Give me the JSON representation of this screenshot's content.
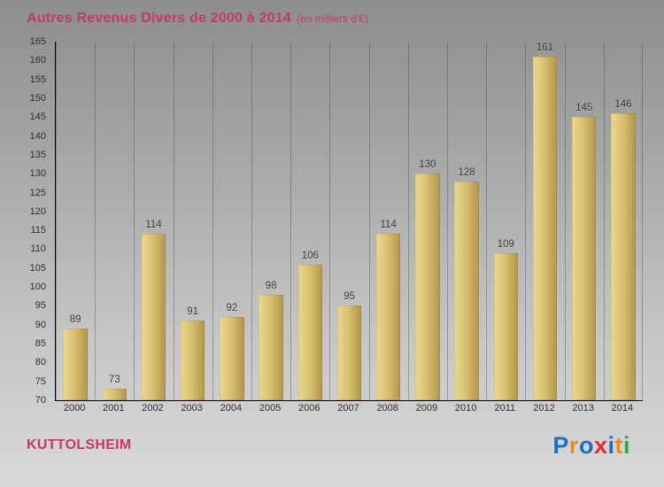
{
  "header": {
    "title": "Autres Revenus Divers de 2000 à 2014",
    "subtitle": "(en milliers d'€)"
  },
  "chart_data": {
    "type": "bar",
    "categories": [
      "2000",
      "2001",
      "2002",
      "2003",
      "2004",
      "2005",
      "2006",
      "2007",
      "2008",
      "2009",
      "2010",
      "2011",
      "2012",
      "2013",
      "2014"
    ],
    "values": [
      89,
      73,
      114,
      91,
      92,
      98,
      106,
      95,
      114,
      130,
      128,
      109,
      161,
      145,
      146
    ],
    "title": "Autres Revenus Divers de 2000 à 2014",
    "subtitle": "(en milliers d'€)",
    "xlabel": "",
    "ylabel": "",
    "ylim": [
      70,
      165
    ],
    "ytick_step": 5,
    "grid": "vertical",
    "legend": "none"
  },
  "footer": {
    "location": "KUTTOLSHEIM"
  },
  "logo": {
    "name": "Proxiti",
    "letters": [
      {
        "ch": "P",
        "color": "#1f6cc9"
      },
      {
        "ch": "r",
        "color": "#f08c1e"
      },
      {
        "ch": "o",
        "color": "#1f6cc9"
      },
      {
        "ch": "x",
        "color": "#e02d24"
      },
      {
        "ch": "i",
        "color": "#1f6cc9"
      },
      {
        "ch": "t",
        "color": "#f08c1e"
      },
      {
        "ch": "i",
        "color": "#2faa3c"
      }
    ]
  },
  "colors": {
    "title": "#c23a6b",
    "location": "#c23a6b",
    "bar_light": "#e9d892",
    "bar_mid": "#d8c272",
    "bar_dark": "#b2954a",
    "value_label": "#3a3a3a",
    "bg_top": "#8d8d8d",
    "bg_bottom": "#d9d9d9"
  }
}
